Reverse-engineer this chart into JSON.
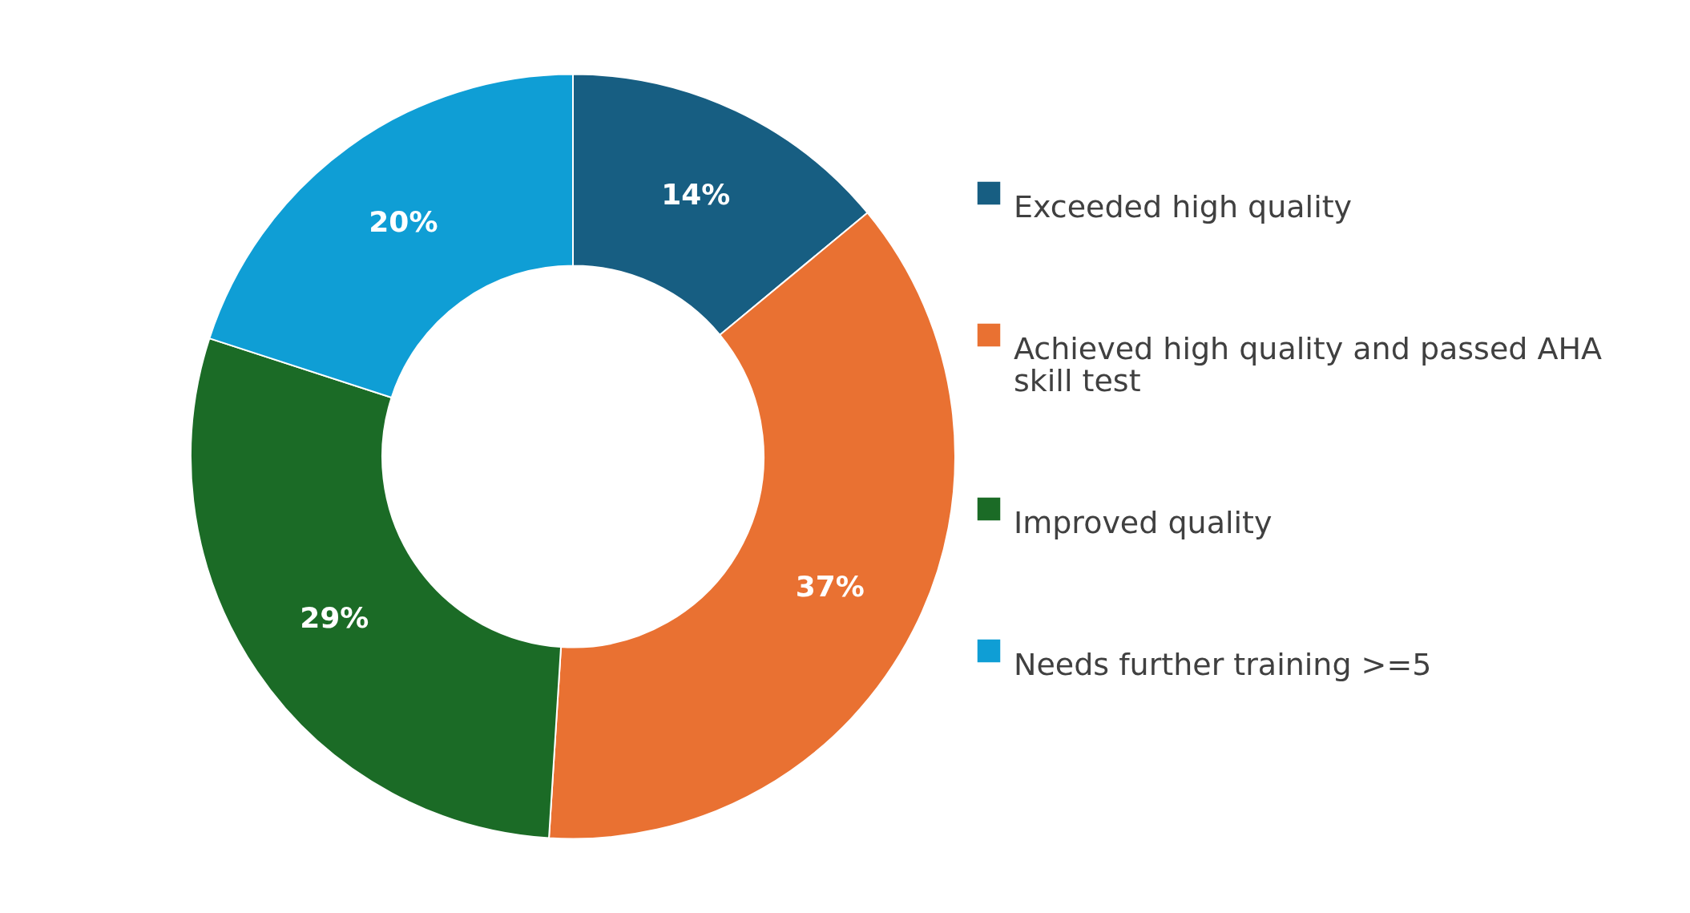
{
  "chart_data": {
    "type": "donut",
    "categories": [
      "Exceeded high quality",
      "Achieved high quality and passed AHA skill test",
      "Improved quality",
      "Needs further training >=5"
    ],
    "values": [
      14,
      37,
      29,
      20
    ],
    "value_labels": [
      "14%",
      "37%",
      "29%",
      "20%"
    ],
    "colors": [
      "#175e82",
      "#e97132",
      "#1b6b26",
      "#0f9ed5"
    ],
    "legend": "right"
  }
}
